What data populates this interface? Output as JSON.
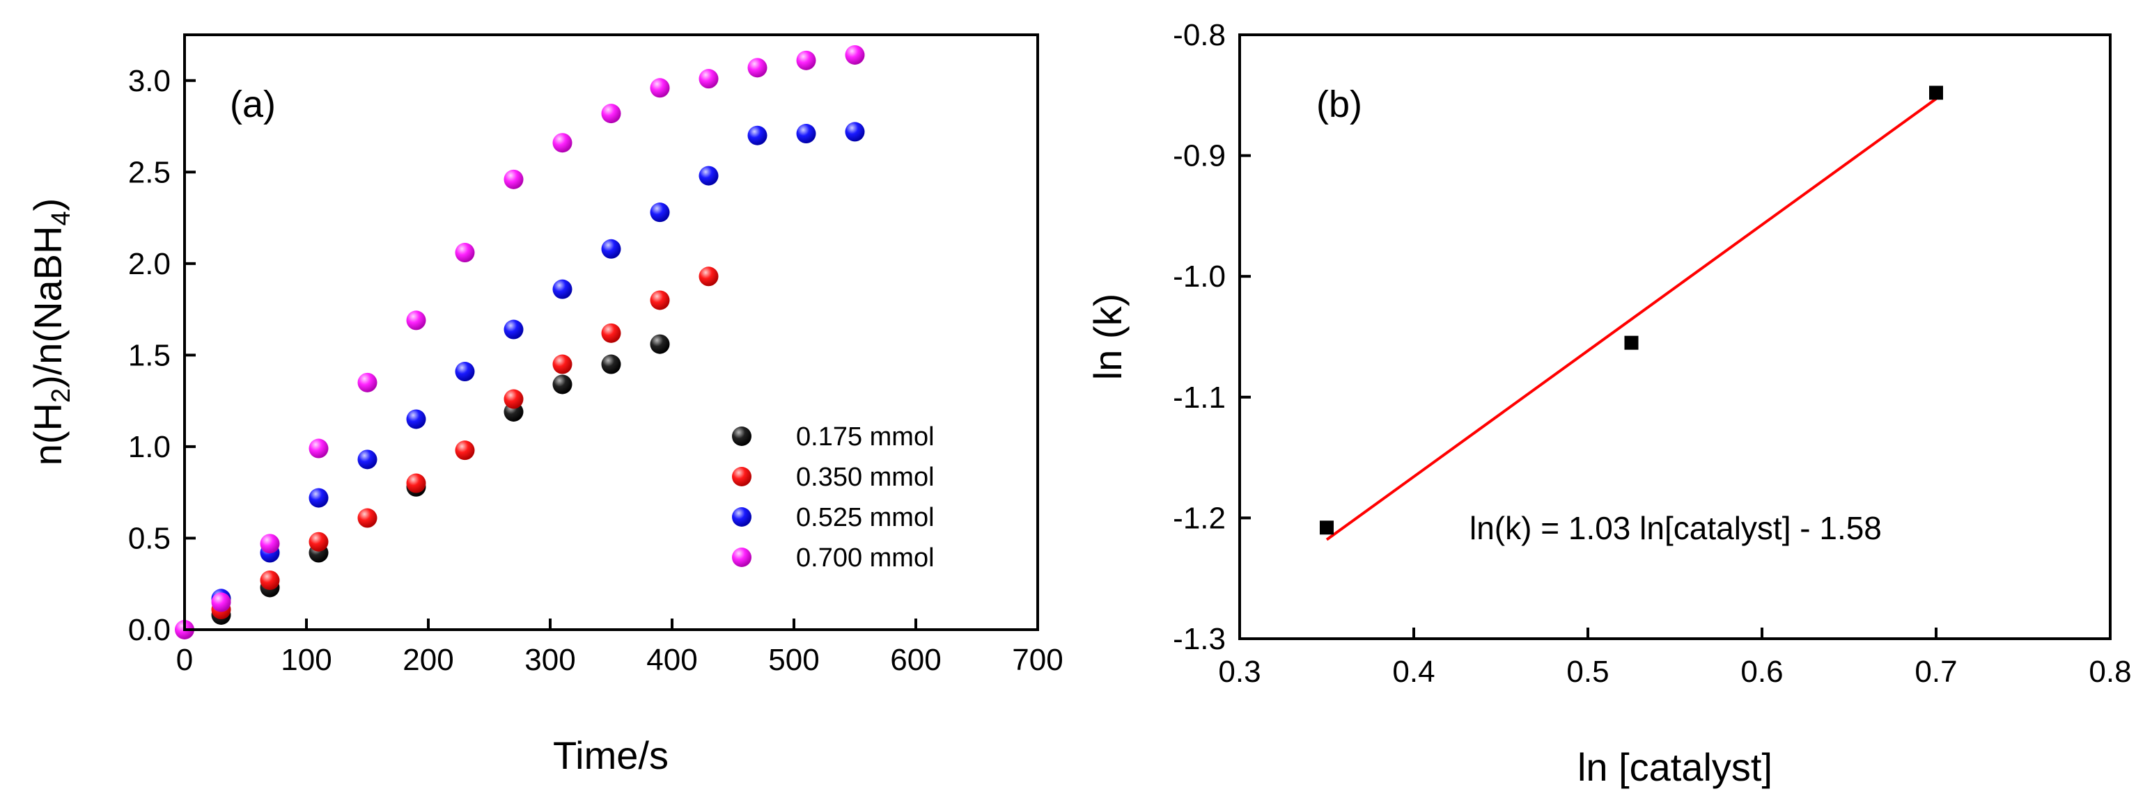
{
  "chart_data": [
    {
      "type": "scatter",
      "panel_label": "(a)",
      "xlabel": "Time/s",
      "ylabel": {
        "main": "n(H",
        "sub1": "2",
        "mid": ")/n(NaBH",
        "sub2": "4",
        "end": ")"
      },
      "xlim": [
        0,
        700
      ],
      "ylim": [
        0,
        3.25
      ],
      "xticks": [
        0,
        100,
        200,
        300,
        400,
        500,
        600,
        700
      ],
      "yticks": [
        0.0,
        0.5,
        1.0,
        1.5,
        2.0,
        2.5,
        3.0
      ],
      "xtick_labels": [
        "0",
        "100",
        "200",
        "300",
        "400",
        "500",
        "600",
        "700"
      ],
      "ytick_labels": [
        "0.0",
        "0.5",
        "1.0",
        "1.5",
        "2.0",
        "2.5",
        "3.0"
      ],
      "legend_position": "lower-right",
      "series": [
        {
          "name": "0.175 mmol",
          "color": "#000000",
          "x": [
            30,
            70,
            110,
            190,
            270,
            310,
            350,
            390
          ],
          "y": [
            0.08,
            0.23,
            0.42,
            0.78,
            1.19,
            1.34,
            1.45,
            1.56
          ]
        },
        {
          "name": "0.350 mmol",
          "color": "#ff0000",
          "x": [
            30,
            70,
            110,
            150,
            190,
            230,
            270,
            310,
            350,
            390,
            430
          ],
          "y": [
            0.11,
            0.27,
            0.48,
            0.61,
            0.8,
            0.98,
            1.26,
            1.45,
            1.62,
            1.8,
            1.93
          ]
        },
        {
          "name": "0.525 mmol",
          "color": "#0000ff",
          "x": [
            30,
            70,
            110,
            150,
            190,
            230,
            270,
            310,
            350,
            390,
            430,
            470,
            510,
            550
          ],
          "y": [
            0.17,
            0.42,
            0.72,
            0.93,
            1.15,
            1.41,
            1.64,
            1.86,
            2.08,
            2.28,
            2.48,
            2.7,
            2.71,
            2.72
          ]
        },
        {
          "name": "0.700 mmol",
          "color": "#ff00ff",
          "x": [
            0,
            30,
            70,
            110,
            150,
            190,
            230,
            270,
            310,
            350,
            390,
            430,
            470,
            510,
            550
          ],
          "y": [
            0.0,
            0.15,
            0.47,
            0.99,
            1.35,
            1.69,
            2.06,
            2.46,
            2.66,
            2.82,
            2.96,
            3.01,
            3.07,
            3.11,
            3.14
          ]
        }
      ]
    },
    {
      "type": "scatter",
      "panel_label": "(b)",
      "xlabel": "ln [catalyst]",
      "ylabel": "ln (k)",
      "xlim": [
        0.3,
        0.8
      ],
      "ylim": [
        -1.3,
        -0.8
      ],
      "xticks": [
        0.3,
        0.4,
        0.5,
        0.6,
        0.7,
        0.8
      ],
      "yticks": [
        -1.3,
        -1.2,
        -1.1,
        -1.0,
        -0.9,
        -0.8
      ],
      "xtick_labels": [
        "0.3",
        "0.4",
        "0.5",
        "0.6",
        "0.7",
        "0.8"
      ],
      "ytick_labels": [
        "-1.3",
        "-1.2",
        "-1.1",
        "-1.0",
        "-0.9",
        "-0.8"
      ],
      "points": {
        "color": "#000000",
        "x": [
          0.35,
          0.525,
          0.7
        ],
        "y": [
          -1.208,
          -1.055,
          -0.848
        ]
      },
      "fit_line": {
        "color": "#ff0000",
        "x": [
          0.35,
          0.7
        ],
        "y": [
          -1.218,
          -0.853
        ]
      },
      "annotation": "ln(k) = 1.03 ln[catalyst] - 1.58"
    }
  ]
}
